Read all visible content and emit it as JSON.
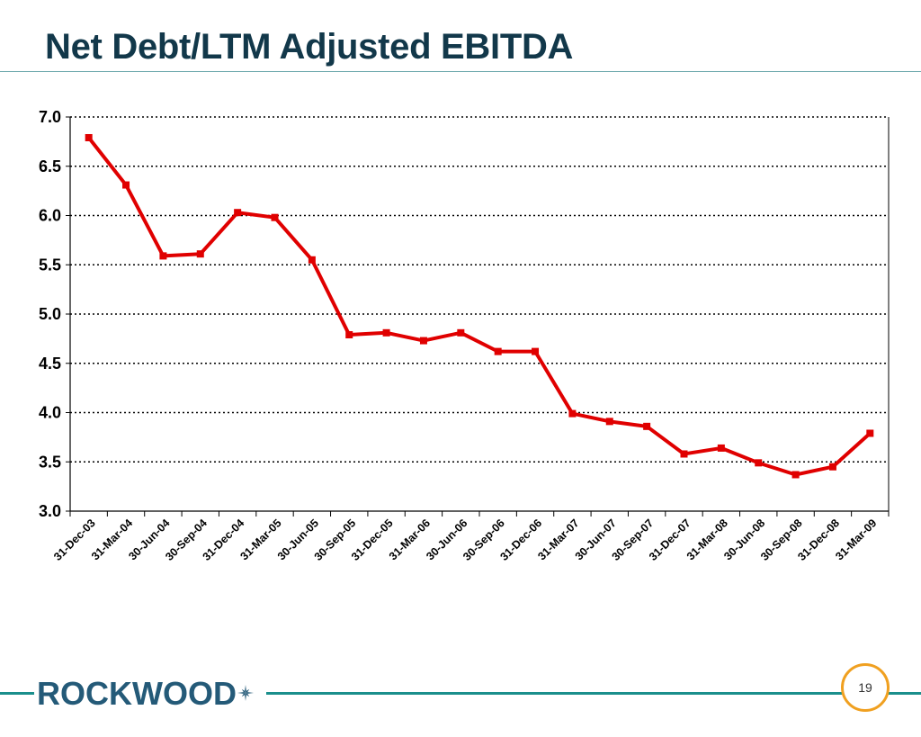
{
  "slide": {
    "title": "Net Debt/LTM Adjusted EBITDA",
    "logo_text": "ROCKWOOD",
    "page_number": "19"
  },
  "colors": {
    "title": "#12384a",
    "series": "#e00000",
    "footer_rule": "#1a8f8c",
    "logo": "#245a78",
    "page_badge_border": "#f0a020"
  },
  "icons": {
    "logo_mark": "compass-star-icon"
  },
  "chart_data": {
    "type": "line",
    "title": "",
    "xlabel": "",
    "ylabel": "",
    "categories": [
      "31-Dec-03",
      "31-Mar-04",
      "30-Jun-04",
      "30-Sep-04",
      "31-Dec-04",
      "31-Mar-05",
      "30-Jun-05",
      "30-Sep-05",
      "31-Dec-05",
      "31-Mar-06",
      "30-Jun-06",
      "30-Sep-06",
      "31-Dec-06",
      "31-Mar-07",
      "30-Jun-07",
      "30-Sep-07",
      "31-Dec-07",
      "31-Mar-08",
      "30-Jun-08",
      "30-Sep-08",
      "31-Dec-08",
      "31-Mar-09"
    ],
    "series": [
      {
        "values": [
          6.79,
          6.31,
          5.59,
          5.61,
          6.03,
          5.98,
          5.55,
          4.79,
          4.81,
          4.73,
          4.81,
          4.62,
          4.62,
          3.99,
          3.91,
          3.86,
          3.58,
          3.64,
          3.49,
          3.37,
          3.45,
          3.79
        ]
      }
    ],
    "ylim": [
      3.0,
      7.0
    ],
    "yticks": [
      "3.0",
      "3.5",
      "4.0",
      "4.5",
      "5.0",
      "5.5",
      "6.0",
      "6.5",
      "7.0"
    ],
    "grid": true,
    "legend": "none"
  }
}
